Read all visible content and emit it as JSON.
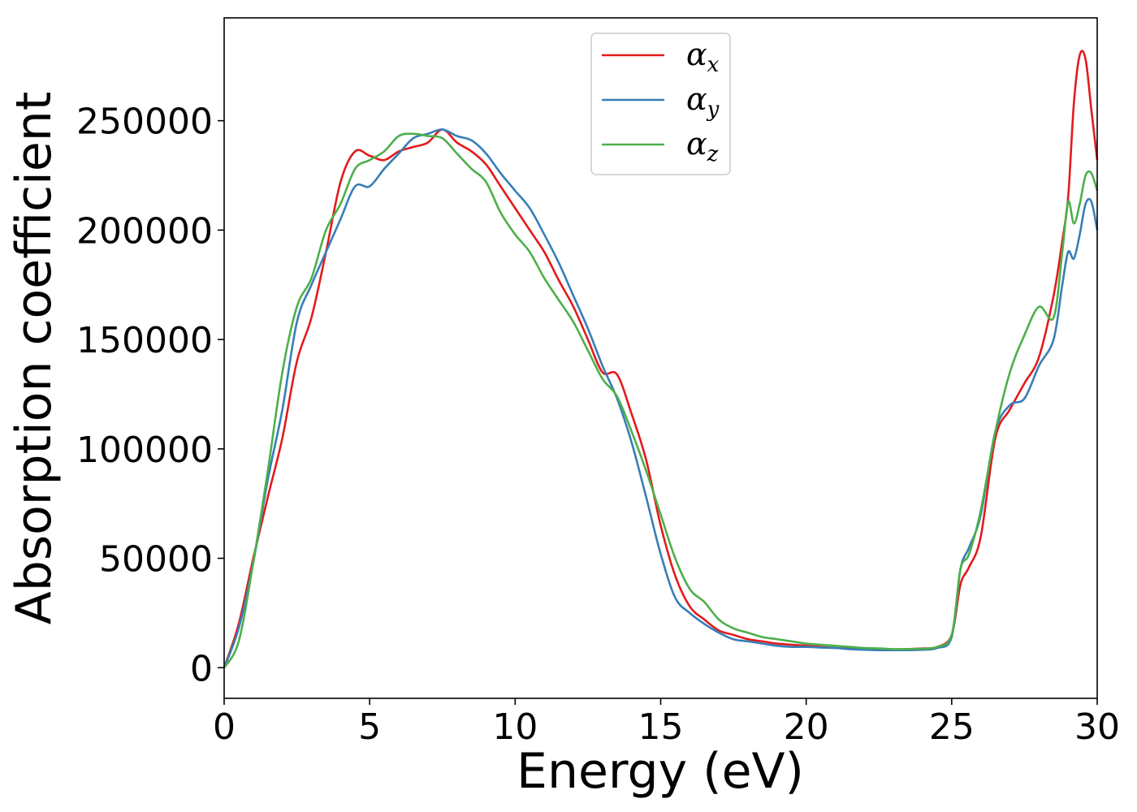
{
  "chart_data": {
    "type": "line",
    "title": "",
    "xlabel": "Energy (eV)",
    "ylabel": "Absorption coefficient",
    "xlim": [
      0,
      30
    ],
    "ylim": [
      -14000,
      297000
    ],
    "xticks": [
      0,
      5,
      10,
      15,
      20,
      25,
      30
    ],
    "xtick_labels": [
      "0",
      "5",
      "10",
      "15",
      "20",
      "25",
      "30"
    ],
    "yticks": [
      0,
      50000,
      100000,
      150000,
      200000,
      250000
    ],
    "ytick_labels": [
      "0",
      "50000",
      "100000",
      "150000",
      "200000",
      "250000"
    ],
    "grid": false,
    "legend_position": "top-center",
    "x": [
      0,
      0.5,
      1,
      1.5,
      2,
      2.5,
      3,
      3.5,
      4,
      4.5,
      5,
      5.5,
      6,
      6.5,
      7,
      7.5,
      8,
      8.5,
      9,
      9.5,
      10,
      10.5,
      11,
      11.5,
      12,
      12.5,
      13,
      13.5,
      14,
      14.5,
      15,
      15.5,
      16,
      16.5,
      17,
      17.5,
      18,
      18.5,
      19,
      19.5,
      20,
      20.5,
      21,
      21.5,
      22,
      22.5,
      23,
      23.5,
      24,
      24.5,
      25,
      25.3,
      25.6,
      26,
      26.5,
      27,
      27.5,
      28,
      28.5,
      28.8,
      29,
      29.2,
      29.4,
      29.6,
      29.8,
      30
    ],
    "series": [
      {
        "name": "α",
        "subscript": "x",
        "color": "#e41a1c",
        "values": [
          0,
          20000,
          50000,
          78000,
          105000,
          140000,
          160000,
          190000,
          222000,
          236000,
          234000,
          232000,
          236000,
          238000,
          240000,
          246000,
          240000,
          236000,
          230000,
          220000,
          210000,
          200000,
          190000,
          177000,
          165000,
          150000,
          135000,
          134000,
          116000,
          95000,
          65000,
          42000,
          28000,
          22000,
          17000,
          15000,
          13000,
          12000,
          11000,
          10500,
          10000,
          9500,
          9000,
          8700,
          8500,
          8300,
          8300,
          8500,
          8800,
          9500,
          15000,
          38000,
          46000,
          60000,
          105000,
          118000,
          130000,
          142000,
          170000,
          195000,
          215000,
          258000,
          280000,
          278000,
          255000,
          232000
        ]
      },
      {
        "name": "α",
        "subscript": "y",
        "color": "#377eb8",
        "values": [
          0,
          18000,
          48000,
          86000,
          118000,
          158000,
          175000,
          190000,
          205000,
          220000,
          220000,
          228000,
          235000,
          242000,
          244000,
          246000,
          243000,
          241000,
          235000,
          226000,
          218000,
          210000,
          198000,
          185000,
          170000,
          155000,
          138000,
          123000,
          103000,
          78000,
          52000,
          32000,
          25000,
          20000,
          16000,
          13000,
          12000,
          11000,
          10000,
          9500,
          9500,
          9200,
          9000,
          8500,
          8200,
          8000,
          8000,
          8000,
          8200,
          9000,
          14000,
          45000,
          55000,
          70000,
          108000,
          120000,
          123000,
          138000,
          150000,
          175000,
          190000,
          187000,
          198000,
          212000,
          213000,
          200000
        ]
      },
      {
        "name": "α",
        "subscript": "z",
        "color": "#4daf4a",
        "values": [
          0,
          12000,
          48000,
          90000,
          135000,
          165000,
          178000,
          200000,
          212000,
          228000,
          232000,
          236000,
          243000,
          244000,
          243000,
          242000,
          235000,
          228000,
          222000,
          208000,
          198000,
          190000,
          178000,
          168000,
          158000,
          145000,
          132000,
          124000,
          108000,
          90000,
          70000,
          50000,
          36000,
          30000,
          22000,
          18000,
          16000,
          14000,
          13000,
          12000,
          11000,
          10500,
          10000,
          9500,
          9000,
          8800,
          8500,
          8500,
          8700,
          9500,
          15000,
          45000,
          52000,
          72000,
          108000,
          135000,
          152000,
          165000,
          160000,
          190000,
          213000,
          203000,
          212000,
          225000,
          226000,
          218000
        ]
      }
    ]
  }
}
